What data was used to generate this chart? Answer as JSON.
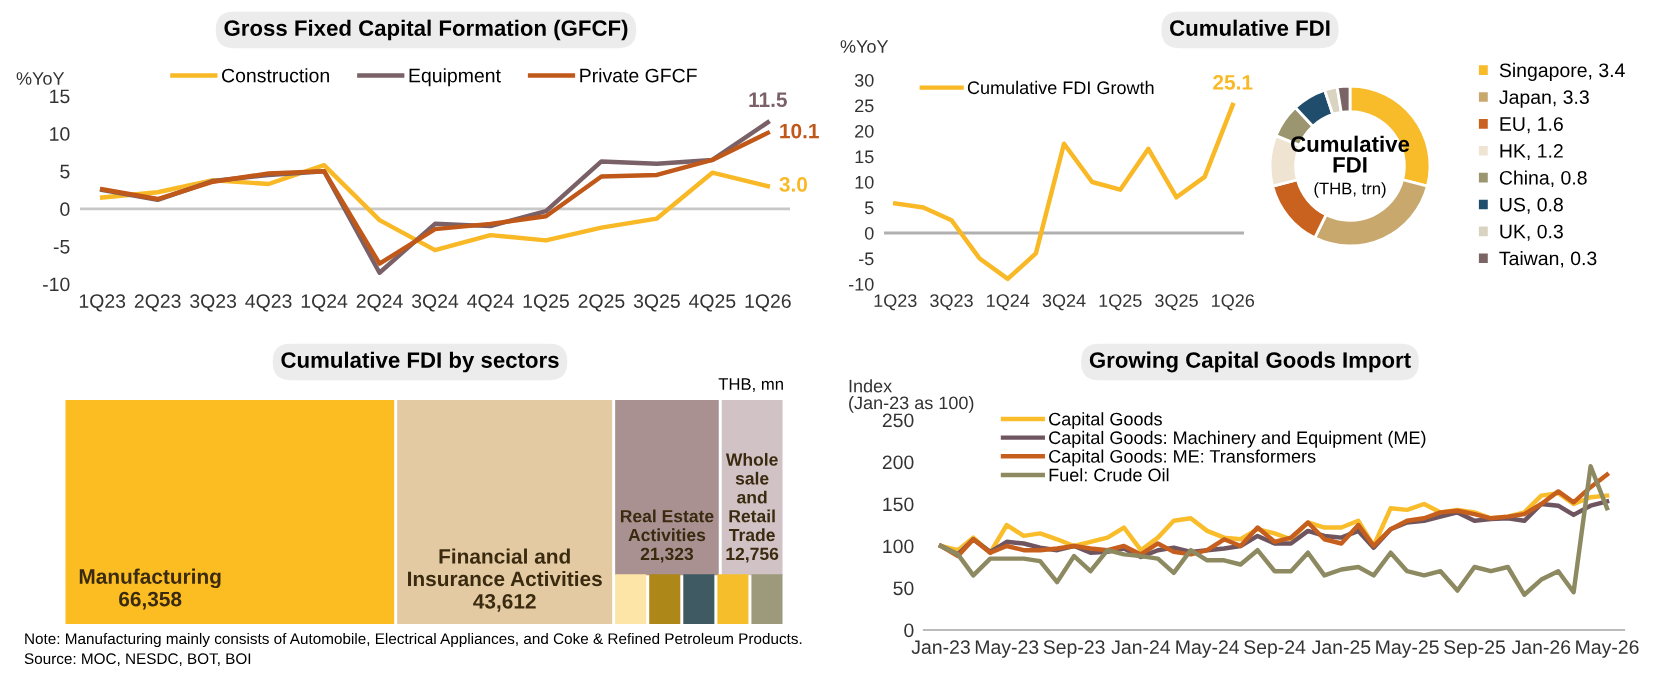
{
  "chart_data": [
    {
      "type": "line",
      "title": "Gross Fixed Capital Formation (GFCF)",
      "ylabel": "%YoY",
      "categories": [
        "1Q23",
        "2Q23",
        "3Q23",
        "4Q23",
        "1Q24",
        "2Q24",
        "3Q24",
        "4Q24",
        "1Q25",
        "2Q25",
        "3Q25",
        "4Q25",
        "1Q26"
      ],
      "series": [
        {
          "name": "Construction",
          "color": "#f9b825",
          "values": [
            1.5,
            2.2,
            3.8,
            3.3,
            5.8,
            -1.5,
            -5.5,
            -3.5,
            -4.2,
            -2.5,
            -1.3,
            4.8,
            3.0
          ],
          "value_labels": [
            null,
            null,
            null,
            null,
            null,
            null,
            null,
            null,
            null,
            null,
            null,
            null,
            "3.0"
          ]
        },
        {
          "name": "Equipment",
          "color": "#7a6167",
          "values": [
            2.5,
            1.2,
            3.7,
            4.5,
            5.0,
            -8.5,
            -2.0,
            -2.3,
            -0.3,
            6.3,
            6.0,
            6.5,
            11.5
          ],
          "value_labels": [
            null,
            null,
            null,
            null,
            null,
            null,
            null,
            null,
            null,
            null,
            null,
            null,
            "11.5"
          ]
        },
        {
          "name": "Private GFCF",
          "color": "#c0581a",
          "values": [
            2.6,
            1.3,
            3.6,
            4.7,
            5.0,
            -7.3,
            -2.7,
            -2.0,
            -1.0,
            4.3,
            4.5,
            6.5,
            10.1
          ],
          "value_labels": [
            null,
            null,
            null,
            null,
            null,
            null,
            null,
            null,
            null,
            null,
            null,
            null,
            "10.1"
          ]
        }
      ],
      "ylim": [
        -10,
        15
      ],
      "yticks": [
        -10,
        -5,
        0,
        5,
        10,
        15
      ],
      "ref_lines": [
        {
          "axis": "y",
          "value": 0,
          "color": "#c8c8c8"
        }
      ],
      "legend": "top",
      "grid": false
    },
    {
      "type": "line",
      "title": "Cumulative FDI",
      "ylabel": "%YoY",
      "categories": [
        "1Q23",
        null,
        "3Q23",
        null,
        "1Q24",
        null,
        "3Q24",
        null,
        "1Q25",
        null,
        "3Q25",
        null,
        "1Q26"
      ],
      "series": [
        {
          "name": "Cumulative FDI Growth",
          "color": "#f9b825",
          "values": [
            5.8,
            5.0,
            2.5,
            -5.0,
            -9.0,
            -4.0,
            17.5,
            10.0,
            8.5,
            16.5,
            7.0,
            11.0,
            25.1
          ],
          "value_labels": [
            null,
            null,
            null,
            null,
            null,
            null,
            null,
            null,
            null,
            null,
            null,
            null,
            "25.1"
          ]
        }
      ],
      "ylim": [
        -10,
        30
      ],
      "yticks": [
        -10,
        -5,
        0,
        5,
        10,
        15,
        20,
        25,
        30
      ],
      "ref_lines": [
        {
          "axis": "y",
          "value": 0,
          "color": "#b0b0b0"
        }
      ],
      "legend": "top left",
      "grid": false
    },
    {
      "type": "donut",
      "title": "Cumulative FDI",
      "subtitle": "(THB, trn)",
      "categories": [
        "Singapore, 3.4",
        "Japan, 3.3",
        "EU, 1.6",
        "HK, 1.2",
        "China, 0.8",
        "US, 0.8",
        "UK, 0.3",
        "Taiwan, 0.3"
      ],
      "values": [
        3.4,
        3.3,
        1.6,
        1.2,
        0.8,
        0.8,
        0.3,
        0.3
      ],
      "colors": [
        "#f8bb2a",
        "#c9a86e",
        "#c8621e",
        "#efe4d2",
        "#9b9670",
        "#1f4d6b",
        "#d9d3c2",
        "#7b6464"
      ],
      "legend": "right"
    },
    {
      "type": "other",
      "title": "Cumulative FDI by sectors",
      "categories": [
        "Manufacturing",
        "Financial and\nInsurance Activities",
        "Real Estate\nActivities",
        "Whole\nsale\nand\nRetail\nTrade",
        null,
        null,
        null,
        null,
        null
      ],
      "values": [
        66358,
        43612,
        21323,
        12756,
        null,
        null,
        null,
        null,
        null
      ],
      "value_labels": [
        "66,358",
        "43,612",
        "21,323",
        "12,756",
        null,
        null,
        null,
        null,
        null
      ],
      "colors": [
        "#fbbd21",
        "#e3caa2",
        "#a99191",
        "#d0c2c5",
        "#fde5a8",
        "#ad8718",
        "#3f5a63",
        "#f7be2b",
        "#9c9a7a"
      ],
      "annotations": [
        "THB, mn",
        "Note: Manufacturing mainly consists of Automobile, Electrical Appliances, and Coke & Refined Petroleum Products.",
        "Source: MOC, NESDC, BOT, BOI"
      ]
    },
    {
      "type": "line",
      "title": "Growing Capital Goods Import",
      "ylabel": "Index\n(Jan-23 as 100)",
      "x": [
        "2023-01",
        "2023-02",
        "2023-03",
        "2023-04",
        "2023-05",
        "2023-06",
        "2023-07",
        "2023-08",
        "2023-09",
        "2023-10",
        "2023-11",
        "2023-12",
        "2024-01",
        "2024-02",
        "2024-03",
        "2024-04",
        "2024-05",
        "2024-06",
        "2024-07",
        "2024-08",
        "2024-09",
        "2024-10",
        "2024-11",
        "2024-12",
        "2025-01",
        "2025-02",
        "2025-03",
        "2025-04",
        "2025-05",
        "2025-06",
        "2025-07",
        "2025-08",
        "2025-09",
        "2025-10",
        "2025-11",
        "2025-12",
        "2026-01",
        "2026-02",
        "2026-03",
        "2026-04",
        "2026-05"
      ],
      "series": [
        {
          "name": "Capital Goods",
          "color": "#f9bd2c",
          "values": [
            100,
            95,
            110,
            92,
            125,
            112,
            115,
            108,
            100,
            105,
            110,
            122,
            95,
            110,
            130,
            133,
            118,
            110,
            108,
            120,
            115,
            108,
            128,
            122,
            122,
            130,
            100,
            145,
            143,
            150,
            140,
            143,
            140,
            133,
            135,
            140,
            160,
            163,
            150,
            158,
            160
          ]
        },
        {
          "name": "Capital Goods: Machinery and Equipment (ME)",
          "color": "#6f5560",
          "values": [
            100,
            90,
            108,
            93,
            105,
            103,
            98,
            95,
            100,
            92,
            93,
            97,
            87,
            95,
            98,
            93,
            95,
            97,
            100,
            112,
            103,
            103,
            118,
            112,
            110,
            118,
            98,
            120,
            128,
            130,
            135,
            140,
            130,
            132,
            133,
            130,
            150,
            148,
            137,
            148,
            153
          ]
        },
        {
          "name": "Capital Goods: ME: Transformers",
          "color": "#c65f1d",
          "values": [
            100,
            88,
            108,
            92,
            100,
            95,
            95,
            97,
            100,
            97,
            95,
            100,
            90,
            103,
            93,
            90,
            95,
            108,
            100,
            122,
            105,
            110,
            128,
            108,
            103,
            125,
            100,
            120,
            130,
            133,
            140,
            142,
            138,
            133,
            135,
            138,
            150,
            165,
            152,
            170,
            185
          ]
        },
        {
          "name": "Fuel: Crude Oil",
          "color": "#8d8a62",
          "values": [
            100,
            90,
            65,
            85,
            85,
            85,
            82,
            57,
            88,
            70,
            95,
            90,
            88,
            85,
            68,
            95,
            83,
            83,
            78,
            95,
            70,
            70,
            92,
            65,
            72,
            75,
            65,
            92,
            70,
            65,
            70,
            47,
            75,
            70,
            75,
            42,
            60,
            70,
            45,
            195,
            145
          ]
        }
      ],
      "xlim": [
        "2022-12",
        "2026-06"
      ],
      "xticks": [
        {
          "value": "2023-01",
          "label": "Jan-23"
        },
        {
          "value": "2023-05",
          "label": "May-23"
        },
        {
          "value": "2023-09",
          "label": "Sep-23"
        },
        {
          "value": "2024-01",
          "label": "Jan-24"
        },
        {
          "value": "2024-05",
          "label": "May-24"
        },
        {
          "value": "2024-09",
          "label": "Sep-24"
        },
        {
          "value": "2025-01",
          "label": "Jan-25"
        },
        {
          "value": "2025-05",
          "label": "May-25"
        },
        {
          "value": "2025-09",
          "label": "Sep-25"
        },
        {
          "value": "2026-01",
          "label": "Jan-26"
        },
        {
          "value": "2026-05",
          "label": "May-26"
        }
      ],
      "ylim": [
        0,
        250
      ],
      "yticks": [
        0,
        50,
        100,
        150,
        200,
        250
      ],
      "legend": "top left",
      "grid": false
    }
  ]
}
